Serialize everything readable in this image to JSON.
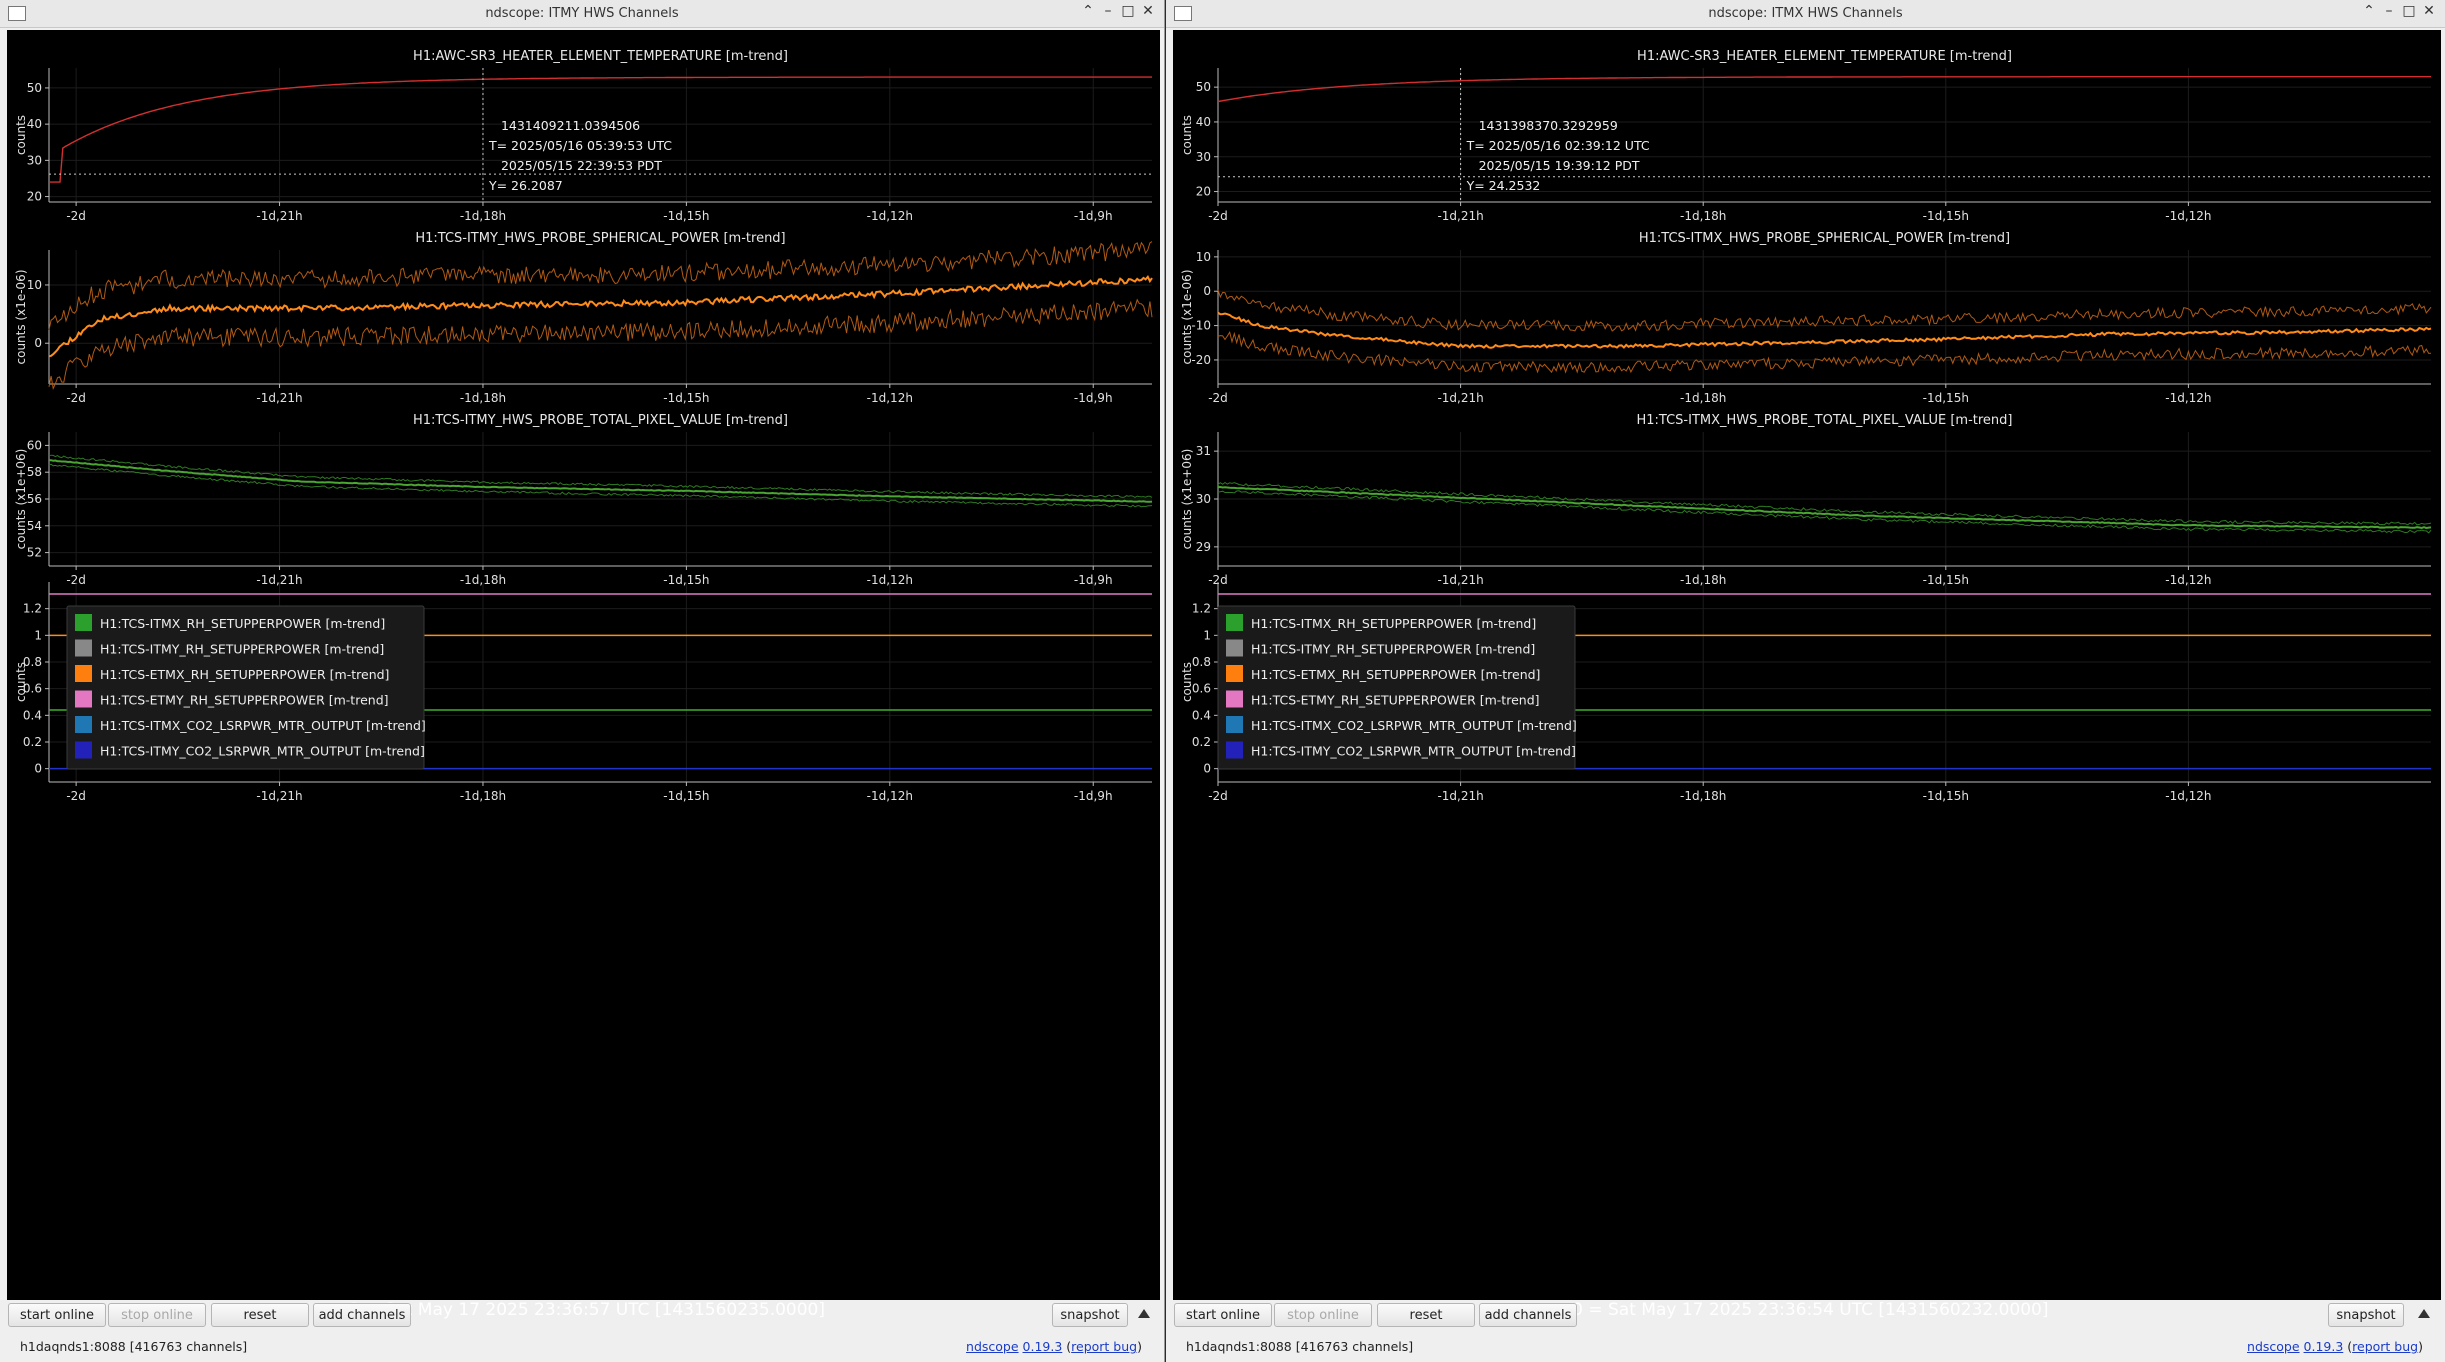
{
  "windows": [
    {
      "id": "winL",
      "title": "ndscope: ITMY HWS Channels",
      "t0": "t0 = Sat May 17 2025 23:36:57 UTC [1431560235.0000]",
      "xticks": [
        {
          "v": -44,
          "label": "-2d"
        },
        {
          "v": -35,
          "label": "-1d,21h"
        },
        {
          "v": -26,
          "label": "-1d,18h"
        },
        {
          "v": -17,
          "label": "-1d,15h"
        },
        {
          "v": -8,
          "label": "-1d,12h"
        },
        {
          "v": 1,
          "label": "-1d,9h"
        }
      ],
      "xrange": [
        -45.2,
        3.6
      ],
      "plots": [
        {
          "title": "H1:AWC-SR3_HEATER_ELEMENT_TEMPERATURE [m-trend]",
          "ylabel": "counts",
          "yrange": [
            18.5,
            55.5
          ],
          "yticks": [
            {
              "v": 20,
              "label": "20"
            },
            {
              "v": 30,
              "label": "30"
            },
            {
              "v": 40,
              "label": "40"
            },
            {
              "v": 50,
              "label": "50"
            }
          ],
          "curve": {
            "type": "heater",
            "color": "#d23030",
            "base": 24,
            "step_x": -44.7,
            "plateau": 53
          },
          "cursor": {
            "x": -26,
            "y": 26.2087,
            "lines": [
              "1431409211.0394506",
              "T= 2025/05/16 05:39:53 UTC",
              "2025/05/15 22:39:53 PDT",
              "Y= 26.2087"
            ]
          }
        },
        {
          "title": "H1:TCS-ITMY_HWS_PROBE_SPHERICAL_POWER [m-trend]",
          "ylabel": "counts (x1e-06)",
          "yrange": [
            -7,
            16
          ],
          "yticks": [
            {
              "v": 0,
              "label": "0"
            },
            {
              "v": 10,
              "label": "10"
            }
          ],
          "curve": {
            "type": "band",
            "color": "#ff8c1a",
            "band_color": "#b05a14",
            "ctrl": [
              [
                -45.2,
                -2
              ],
              [
                -43,
                4
              ],
              [
                -40,
                6
              ],
              [
                -34,
                6
              ],
              [
                -26,
                6.5
              ],
              [
                -17,
                7
              ],
              [
                -8,
                8.5
              ],
              [
                3.6,
                11
              ]
            ],
            "width": 5,
            "noise": 1.6,
            "seed": 11
          }
        },
        {
          "title": "H1:TCS-ITMY_HWS_PROBE_TOTAL_PIXEL_VALUE [m-trend]",
          "ylabel": "counts (x1e+06)",
          "yrange": [
            51,
            61
          ],
          "yticks": [
            {
              "v": 52,
              "label": "52"
            },
            {
              "v": 54,
              "label": "54"
            },
            {
              "v": 56,
              "label": "56"
            },
            {
              "v": 58,
              "label": "58"
            },
            {
              "v": 60,
              "label": "60"
            }
          ],
          "curve": {
            "type": "band",
            "color": "#4aa832",
            "band_color": "#2d7a22",
            "ctrl": [
              [
                -45.2,
                58.9
              ],
              [
                -40,
                58.1
              ],
              [
                -34,
                57.3
              ],
              [
                -26,
                56.9
              ],
              [
                -17,
                56.6
              ],
              [
                -8,
                56.2
              ],
              [
                3.6,
                55.8
              ]
            ],
            "width": 0.35,
            "noise": 0.08,
            "seed": 23
          }
        },
        {
          "title": "",
          "ylabel": "counts",
          "yrange": [
            -0.1,
            1.4
          ],
          "yticks": [
            {
              "v": 0,
              "label": "0"
            },
            {
              "v": 0.2,
              "label": "0.2"
            },
            {
              "v": 0.4,
              "label": "0.4"
            },
            {
              "v": 0.6,
              "label": "0.6"
            },
            {
              "v": 0.8,
              "label": "0.8"
            },
            {
              "v": 1,
              "label": "1"
            },
            {
              "v": 1.2,
              "label": "1.2"
            }
          ],
          "hlines": [
            {
              "y": 1.31,
              "color": "#e07ac8"
            },
            {
              "y": 1.0,
              "color": "#ff8c1a"
            },
            {
              "y": 0.44,
              "color": "#3cb02a"
            },
            {
              "y": 0.0,
              "color": "#2233cc"
            }
          ],
          "legend": [
            {
              "label": "H1:TCS-ITMX_RH_SETUPPERPOWER [m-trend]",
              "color": "#2ca02c"
            },
            {
              "label": "H1:TCS-ITMY_RH_SETUPPERPOWER [m-trend]",
              "color": "#888888"
            },
            {
              "label": "H1:TCS-ETMX_RH_SETUPPERPOWER [m-trend]",
              "color": "#ff7f0e"
            },
            {
              "label": "H1:TCS-ETMY_RH_SETUPPERPOWER [m-trend]",
              "color": "#e377c2"
            },
            {
              "label": "H1:TCS-ITMX_CO2_LSRPWR_MTR_OUTPUT [m-trend]",
              "color": "#1f77b4"
            },
            {
              "label": "H1:TCS-ITMY_CO2_LSRPWR_MTR_OUTPUT [m-trend]",
              "color": "#2222bb"
            }
          ]
        }
      ],
      "buttons": {
        "start": "start online",
        "stop": "stop online",
        "reset": "reset",
        "add": "add channels",
        "snapshot": "snapshot"
      },
      "status": {
        "host": "h1daqnds1:8088  [416763 channels]",
        "ndscope": "ndscope",
        "version": "0.19.3",
        "report": "report bug"
      }
    },
    {
      "id": "winR",
      "title": "ndscope: ITMX HWS Channels",
      "t0": "t0 = Sat May 17 2025 23:36:54 UTC [1431560232.0000]",
      "xticks": [
        {
          "v": -48,
          "label": "-2d"
        },
        {
          "v": -45,
          "label": "-1d,21h"
        },
        {
          "v": -42,
          "label": "-1d,18h"
        },
        {
          "v": -39,
          "label": "-1d,15h"
        },
        {
          "v": -36,
          "label": "-1d,12h"
        }
      ],
      "xrange": [
        -48.0,
        -33.0
      ],
      "plots": [
        {
          "title": "H1:AWC-SR3_HEATER_ELEMENT_TEMPERATURE [m-trend]",
          "ylabel": "counts",
          "yrange": [
            17,
            55.5
          ],
          "yticks": [
            {
              "v": 20,
              "label": "20"
            },
            {
              "v": 30,
              "label": "30"
            },
            {
              "v": 40,
              "label": "40"
            },
            {
              "v": 50,
              "label": "50"
            }
          ],
          "curve": {
            "type": "heater",
            "color": "#d23030",
            "base": 24,
            "step_x": -49.7,
            "plateau": 53
          },
          "cursor": {
            "x": -45,
            "y": 24.2532,
            "lines": [
              "1431398370.3292959",
              "T= 2025/05/16 02:39:12 UTC",
              "2025/05/15 19:39:12 PDT",
              "Y= 24.2532"
            ]
          }
        },
        {
          "title": "H1:TCS-ITMX_HWS_PROBE_SPHERICAL_POWER [m-trend]",
          "ylabel": "counts (x1e-06)",
          "yrange": [
            -27,
            12
          ],
          "yticks": [
            {
              "v": -20,
              "label": "-20"
            },
            {
              "v": -10,
              "label": "-10"
            },
            {
              "v": 0,
              "label": "0"
            },
            {
              "v": 10,
              "label": "10"
            }
          ],
          "curve": {
            "type": "band",
            "color": "#ff8c1a",
            "band_color": "#b05a14",
            "ctrl": [
              [
                -50.6,
                0
              ],
              [
                -49.5,
                1
              ],
              [
                -48.5,
                -2
              ],
              [
                -47.5,
                -10
              ],
              [
                -46.5,
                -13
              ],
              [
                -45,
                -16
              ],
              [
                -43,
                -16
              ],
              [
                -41,
                -15
              ],
              [
                -39,
                -14
              ],
              [
                -37,
                -12.5
              ],
              [
                -35,
                -12
              ],
              [
                -33,
                -11
              ]
            ],
            "width": 6,
            "noise": 1.6,
            "seed": 37
          }
        },
        {
          "title": "H1:TCS-ITMX_HWS_PROBE_TOTAL_PIXEL_VALUE [m-trend]",
          "ylabel": "counts (x1e+06)",
          "yrange": [
            28.6,
            31.4
          ],
          "yticks": [
            {
              "v": 29,
              "label": "29"
            },
            {
              "v": 30,
              "label": "30"
            },
            {
              "v": 31,
              "label": "31"
            }
          ],
          "curve": {
            "type": "band",
            "color": "#4aa832",
            "band_color": "#2d7a22",
            "ctrl": [
              [
                -50.6,
                30.4
              ],
              [
                -48,
                30.25
              ],
              [
                -46,
                30.1
              ],
              [
                -44,
                29.95
              ],
              [
                -42,
                29.8
              ],
              [
                -40,
                29.65
              ],
              [
                -38,
                29.55
              ],
              [
                -36,
                29.45
              ],
              [
                -33,
                29.4
              ]
            ],
            "width": 0.08,
            "noise": 0.03,
            "seed": 53
          }
        },
        {
          "title": "",
          "ylabel": "counts",
          "yrange": [
            -0.1,
            1.4
          ],
          "yticks": [
            {
              "v": 0,
              "label": "0"
            },
            {
              "v": 0.2,
              "label": "0.2"
            },
            {
              "v": 0.4,
              "label": "0.4"
            },
            {
              "v": 0.6,
              "label": "0.6"
            },
            {
              "v": 0.8,
              "label": "0.8"
            },
            {
              "v": 1,
              "label": "1"
            },
            {
              "v": 1.2,
              "label": "1.2"
            }
          ],
          "hlines": [
            {
              "y": 1.31,
              "color": "#e07ac8"
            },
            {
              "y": 1.0,
              "color": "#ff8c1a"
            },
            {
              "y": 0.44,
              "color": "#3cb02a"
            },
            {
              "y": 0.0,
              "color": "#2233cc"
            }
          ],
          "legend": [
            {
              "label": "H1:TCS-ITMX_RH_SETUPPERPOWER [m-trend]",
              "color": "#2ca02c"
            },
            {
              "label": "H1:TCS-ITMY_RH_SETUPPERPOWER [m-trend]",
              "color": "#888888"
            },
            {
              "label": "H1:TCS-ETMX_RH_SETUPPERPOWER [m-trend]",
              "color": "#ff7f0e"
            },
            {
              "label": "H1:TCS-ETMY_RH_SETUPPERPOWER [m-trend]",
              "color": "#e377c2"
            },
            {
              "label": "H1:TCS-ITMX_CO2_LSRPWR_MTR_OUTPUT [m-trend]",
              "color": "#1f77b4"
            },
            {
              "label": "H1:TCS-ITMY_CO2_LSRPWR_MTR_OUTPUT [m-trend]",
              "color": "#2222bb"
            }
          ]
        }
      ],
      "buttons": {
        "start": "start online",
        "stop": "stop online",
        "reset": "reset",
        "add": "add channels",
        "snapshot": "snapshot"
      },
      "status": {
        "host": "h1daqnds1:8088  [416763 channels]",
        "ndscope": "ndscope",
        "version": "0.19.3",
        "report": "report bug"
      }
    }
  ]
}
